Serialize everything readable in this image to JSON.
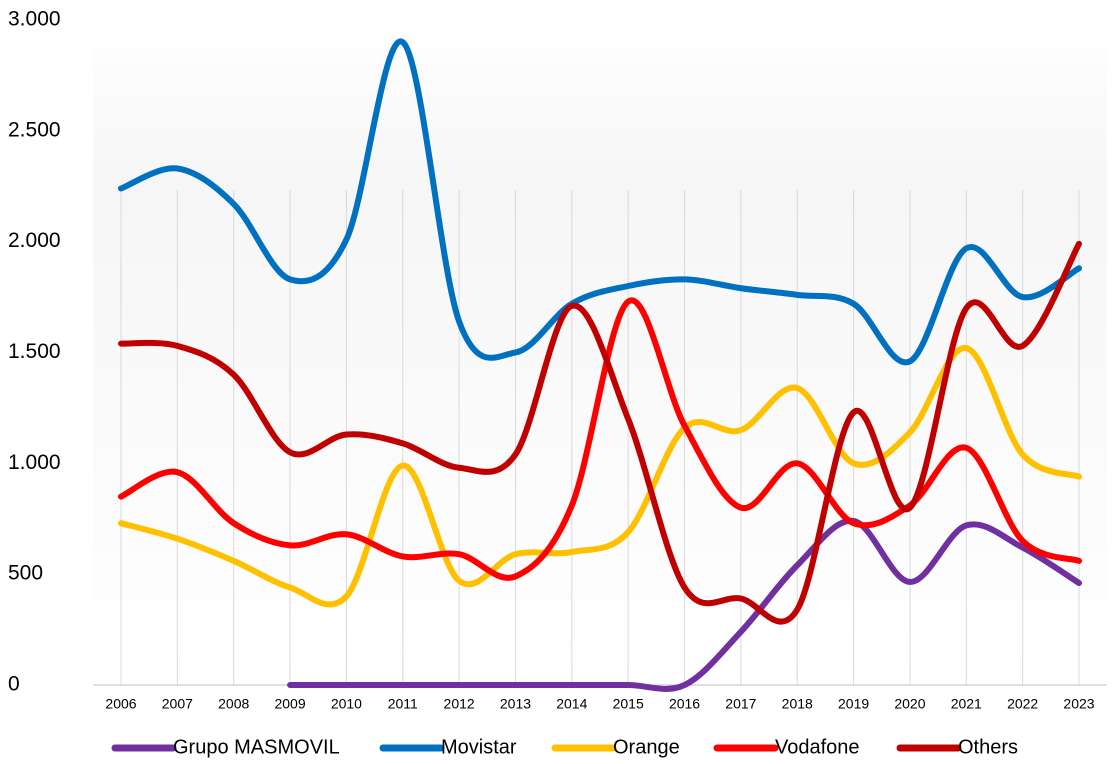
{
  "chart_data": {
    "type": "line",
    "categories": [
      "2006",
      "2007",
      "2008",
      "2009",
      "2010",
      "2011",
      "2012",
      "2013",
      "2014",
      "2015",
      "2016",
      "2017",
      "2018",
      "2019",
      "2020",
      "2021",
      "2022",
      "2023"
    ],
    "series": [
      {
        "name": "Grupo MASMOVIL",
        "color": "#7030a0",
        "values": [
          null,
          null,
          null,
          0,
          0,
          0,
          0,
          0,
          0,
          0,
          0,
          240,
          540,
          740,
          465,
          720,
          620,
          460
        ]
      },
      {
        "name": "Movistar",
        "color": "#0070c0",
        "values": [
          2240,
          2330,
          2170,
          1830,
          2010,
          2900,
          1640,
          1500,
          1720,
          1800,
          1830,
          1790,
          1760,
          1720,
          1460,
          1970,
          1750,
          1880
        ]
      },
      {
        "name": "Orange",
        "color": "#ffc000",
        "values": [
          730,
          660,
          560,
          440,
          400,
          990,
          470,
          590,
          600,
          690,
          1160,
          1150,
          1340,
          1000,
          1140,
          1520,
          1040,
          940
        ]
      },
      {
        "name": "Vodafone",
        "color": "#ff0000",
        "values": [
          850,
          960,
          730,
          630,
          680,
          580,
          590,
          490,
          810,
          1730,
          1170,
          800,
          1000,
          730,
          810,
          1070,
          650,
          560
        ]
      },
      {
        "name": "Others",
        "color": "#c00000",
        "values": [
          1540,
          1530,
          1400,
          1050,
          1130,
          1090,
          980,
          1040,
          1710,
          1200,
          440,
          390,
          340,
          1230,
          800,
          1700,
          1530,
          1990
        ]
      }
    ],
    "ylim": [
      0,
      3000
    ],
    "yticks": [
      0,
      500,
      {
        "value": 1000,
        "label": "1.000"
      },
      {
        "value": 1500,
        "label": "1.500"
      },
      {
        "value": 2000,
        "label": "2.000"
      },
      {
        "value": 2500,
        "label": "2.500"
      },
      {
        "value": 3000,
        "label": "3.000"
      }
    ],
    "smooth": true
  }
}
